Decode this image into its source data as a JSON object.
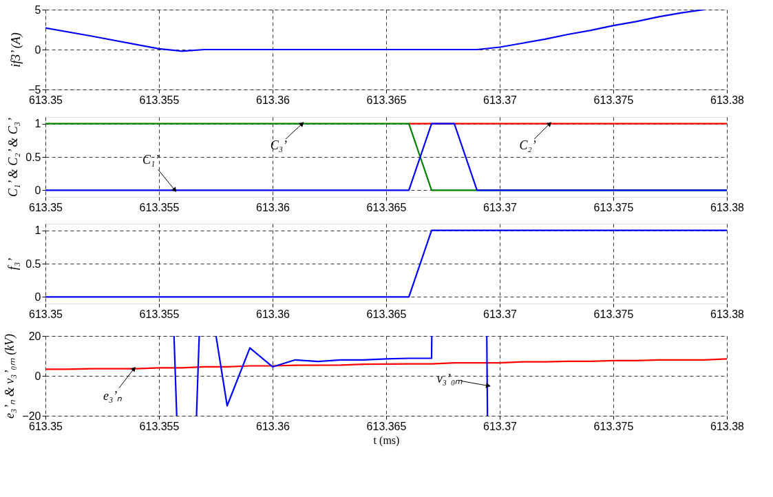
{
  "chart_data": [
    {
      "type": "line",
      "ylabel": "if3’ (A)",
      "xlim": [
        613.35,
        613.38
      ],
      "xticks": [
        613.35,
        613.355,
        613.36,
        613.365,
        613.37,
        613.375,
        613.38
      ],
      "ylim": [
        -5,
        5
      ],
      "yticks": [
        -5,
        0,
        5
      ],
      "grid": true,
      "series": [
        {
          "color": "#0000ff",
          "x": [
            613.35,
            613.352,
            613.355,
            613.356,
            613.357,
            613.369,
            613.37,
            613.371,
            613.372,
            613.373,
            613.374,
            613.375,
            613.376,
            613.377,
            613.378,
            613.379
          ],
          "values": [
            2.7,
            1.7,
            0.1,
            -0.2,
            0,
            0,
            0.3,
            0.8,
            1.3,
            1.9,
            2.4,
            3.0,
            3.5,
            4.1,
            4.6,
            5.0
          ]
        }
      ]
    },
    {
      "type": "line",
      "ylabel": "C₁’ & C₂’ & C₃’",
      "xlim": [
        613.35,
        613.38
      ],
      "xticks": [
        613.35,
        613.355,
        613.36,
        613.365,
        613.37,
        613.375,
        613.38
      ],
      "ylim": [
        -0.1,
        1.1
      ],
      "yticks": [
        0,
        0.5,
        1
      ],
      "grid": true,
      "series": [
        {
          "color": "#ff0000",
          "x": [
            613.366,
            613.38
          ],
          "values": [
            1,
            1
          ]
        },
        {
          "color": "#008000",
          "x": [
            613.35,
            613.366,
            613.367,
            613.38
          ],
          "values": [
            1,
            1,
            0,
            0
          ]
        },
        {
          "color": "#0000ff",
          "x": [
            613.35,
            613.366,
            613.367,
            613.368,
            613.369,
            613.38
          ],
          "values": [
            0,
            0,
            1,
            1,
            0,
            0
          ]
        }
      ],
      "annotations": [
        {
          "text": "C₁’",
          "x": 613.3557,
          "y": 0
        },
        {
          "text": "C₃’",
          "x": 613.3613,
          "y": 1
        },
        {
          "text": "C₂’",
          "x": 613.3722,
          "y": 1
        }
      ]
    },
    {
      "type": "line",
      "ylabel": "f₃’",
      "xlim": [
        613.35,
        613.38
      ],
      "xticks": [
        613.35,
        613.355,
        613.36,
        613.365,
        613.37,
        613.375,
        613.38
      ],
      "ylim": [
        -0.1,
        1.1
      ],
      "yticks": [
        0,
        0.5,
        1
      ],
      "grid": true,
      "series": [
        {
          "color": "#0000ff",
          "x": [
            613.35,
            613.366,
            613.367,
            613.38
          ],
          "values": [
            0,
            0,
            1,
            1
          ]
        }
      ]
    },
    {
      "type": "line",
      "ylabel": "e₃’ₙ & v₃’₀ₘ (kV)",
      "xlabel": "t (ms)",
      "xlim": [
        613.35,
        613.38
      ],
      "xticks": [
        613.35,
        613.355,
        613.36,
        613.365,
        613.37,
        613.375,
        613.38
      ],
      "ylim": [
        -20,
        20
      ],
      "yticks": [
        -20,
        0,
        20
      ],
      "grid": true,
      "series": [
        {
          "color": "#ff0000",
          "x": [
            613.35,
            613.351,
            613.352,
            613.354,
            613.355,
            613.356,
            613.357,
            613.358,
            613.359,
            613.36,
            613.361,
            613.363,
            613.364,
            613.366,
            613.367,
            613.368,
            613.37,
            613.371,
            613.372,
            613.373,
            613.374,
            613.375,
            613.376,
            613.377,
            613.379,
            613.38
          ],
          "values": [
            3.3,
            3.3,
            3.6,
            3.6,
            4.0,
            4.0,
            4.5,
            4.5,
            5.0,
            5.0,
            5.3,
            5.4,
            5.8,
            6.0,
            6.0,
            6.5,
            6.5,
            7.0,
            7.0,
            7.3,
            7.3,
            7.6,
            7.6,
            8.0,
            8.0,
            8.5
          ]
        },
        {
          "color": "#0000ff",
          "x": [
            613.35566,
            613.35578,
            613.3562,
            613.35665,
            613.35677,
            613.3571,
            613.35751,
            613.358,
            613.359,
            613.36,
            613.361,
            613.362,
            613.363,
            613.364,
            613.365,
            613.366,
            613.367,
            613.36701,
            613.368,
            613.36943,
            613.36946
          ],
          "values": [
            20,
            -20,
            null,
            -20,
            20,
            null,
            20,
            -15,
            14,
            4.5,
            8,
            7.2,
            8,
            8,
            8.5,
            8.8,
            8.8,
            20,
            null,
            20,
            -20
          ]
        }
      ],
      "annotations": [
        {
          "text": "e₃’ₙ",
          "x": 613.3539,
          "y": 3.6
        },
        {
          "text": "v₃’₀ₘ",
          "x": 613.3695,
          "y": -5
        }
      ]
    }
  ]
}
